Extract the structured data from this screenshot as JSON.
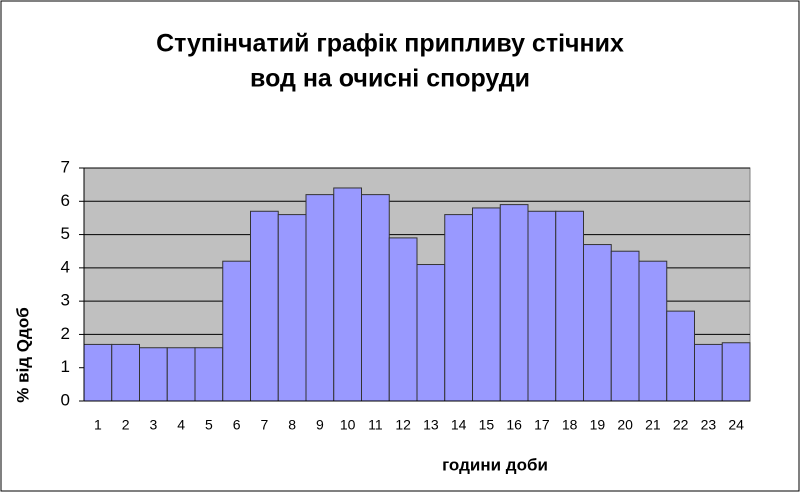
{
  "chart_data": {
    "type": "bar",
    "title": [
      "Ступінчатий графік припливу стічних",
      "вод на очисні споруди"
    ],
    "x_label": "години доби",
    "y_label": "% від Qдоб",
    "categories": [
      "1",
      "2",
      "3",
      "4",
      "5",
      "6",
      "7",
      "8",
      "9",
      "10",
      "11",
      "12",
      "13",
      "14",
      "15",
      "16",
      "17",
      "18",
      "19",
      "20",
      "21",
      "22",
      "23",
      "24"
    ],
    "values": [
      1.7,
      1.7,
      1.6,
      1.6,
      1.6,
      4.2,
      5.7,
      5.6,
      6.2,
      6.4,
      6.2,
      4.9,
      4.1,
      5.6,
      5.8,
      5.9,
      5.7,
      5.7,
      4.7,
      4.5,
      4.2,
      2.7,
      1.7,
      1.75
    ],
    "color": "#9999ff",
    "plot_background": "#c0c0c0",
    "ylim": [
      0,
      7
    ],
    "yticks": [
      0,
      1,
      2,
      3,
      4,
      5,
      6,
      7
    ],
    "grid": true
  }
}
